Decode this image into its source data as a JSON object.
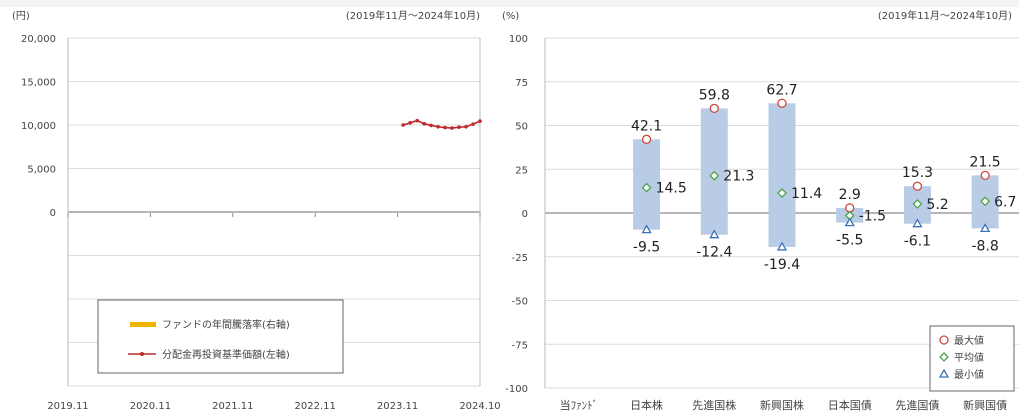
{
  "chart_data": [
    {
      "type": "line",
      "unit_label": "(円)",
      "period_label": "(2019年11月～2024年10月)",
      "yticks": [
        "20,000",
        "15,000",
        "10,000",
        "5,000",
        "0"
      ],
      "ylim": [
        -20000,
        20000
      ],
      "xticks": [
        "2019.11",
        "2020.11",
        "2021.11",
        "2022.11",
        "2023.11",
        "2024.10"
      ],
      "grid": true,
      "legend_position": "bottom-left",
      "legend": [
        {
          "label": "ファンドの年間騰落率(右軸)",
          "color": "#f0b400"
        },
        {
          "label": "分配金再投資基準価額(左軸)",
          "color": "#c0282d"
        }
      ],
      "series": [
        {
          "name": "分配金再投資基準価額(左軸)",
          "color": "#c0282d",
          "x": [
            "2023.11",
            "2023.12",
            "2024.01",
            "2024.02",
            "2024.03",
            "2024.04",
            "2024.05",
            "2024.06",
            "2024.07",
            "2024.08",
            "2024.09",
            "2024.10"
          ],
          "values": [
            10000,
            10250,
            10500,
            10150,
            9950,
            9800,
            9700,
            9650,
            9750,
            9800,
            10100,
            10450
          ]
        }
      ]
    },
    {
      "type": "bar",
      "unit_label": "(%)",
      "period_label": "(2019年11月～2024年10月)",
      "ylim": [
        -100,
        100
      ],
      "yticks": [
        "100",
        "75",
        "50",
        "25",
        "0",
        "-25",
        "-50",
        "-75",
        "-100"
      ],
      "categories": [
        "当ﾌｧﾝﾄﾞ",
        "日本株",
        "先進国株",
        "新興国株",
        "日本国債",
        "先進国債",
        "新興国債"
      ],
      "max": [
        null,
        42.1,
        59.8,
        62.7,
        2.9,
        15.3,
        21.5
      ],
      "avg": [
        null,
        14.5,
        21.3,
        11.4,
        -1.5,
        5.2,
        6.7
      ],
      "min": [
        null,
        -9.5,
        -12.4,
        -19.4,
        -5.5,
        -6.1,
        -8.8
      ],
      "max_labels": [
        "",
        "42.1",
        "59.8",
        "62.7",
        "2.9",
        "15.3",
        "21.5"
      ],
      "avg_labels": [
        "",
        "14.5",
        "21.3",
        "11.4",
        "-1.5",
        "5.2",
        "6.7"
      ],
      "min_labels": [
        "",
        "-9.5",
        "-12.4",
        "-19.4",
        "-5.5",
        "-6.1",
        "-8.8"
      ],
      "bar_color": "#b9cce6",
      "legend_position": "bottom-right",
      "legend": [
        {
          "label": "最大値",
          "marker": "circle",
          "color": "#d2463c"
        },
        {
          "label": "平均値",
          "marker": "diamond",
          "color": "#4aa44a"
        },
        {
          "label": "最小値",
          "marker": "triangle",
          "color": "#3d72b8"
        }
      ]
    }
  ]
}
